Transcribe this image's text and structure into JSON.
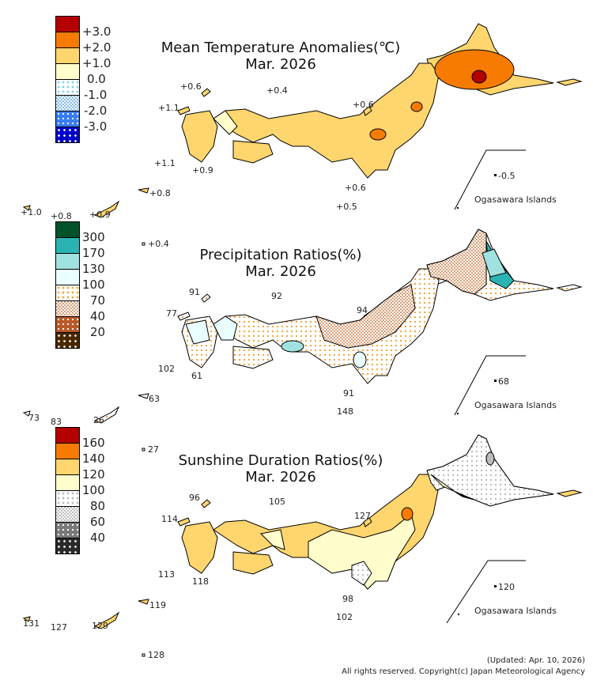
{
  "panels": [
    {
      "title": "Mean Temperature Anomalies(℃)",
      "period": "Mar. 2026",
      "legend": [
        "+3.0",
        "+2.0",
        "+1.0",
        "0.0",
        "-1.0",
        "-2.0",
        "-3.0"
      ],
      "legend_colors": [
        "#B40000",
        "#F77B00",
        "#FFD56E",
        "#FFFDCC",
        "dot:#7CD3F0",
        "chk:#86B9F5",
        "dot:#3B7DF5",
        "dot:#0000C8"
      ],
      "labels": {
        "tsushima": "+1.1",
        "oki": "+0.6",
        "sado": "+0.6",
        "dogo": "+0.4",
        "fukue": "+1.1",
        "yakushima": "+0.9",
        "amami": "+0.8",
        "yonaguni": "+1.0",
        "ishigaki": "+0.8",
        "naha": "+0.9",
        "daito": "+0.4",
        "hachijo": "+0.5",
        "miyake": "+0.6",
        "chichijima": "-0.5"
      },
      "island_label": "Ogasawara Islands"
    },
    {
      "title": "Precipitation Ratios(%)",
      "period": "Mar. 2026",
      "legend": [
        "300",
        "170",
        "130",
        "100",
        "70",
        "40",
        "20"
      ],
      "legend_colors": [
        "#04522A",
        "#2BB3B3",
        "#A0E2E0",
        "#EAFFFF",
        "dot:#F5A53C",
        "chk:#D9A07A",
        "dot:#B85A28",
        "dot:#4A2800"
      ],
      "labels": {
        "tsushima": "77",
        "oki": "91",
        "sado": "94",
        "dogo": "92",
        "fukue": "102",
        "yakushima": "61",
        "amami": "63",
        "yonaguni": "73",
        "ishigaki": "83",
        "naha": "26",
        "daito": "27",
        "hachijo": "148",
        "miyake": "91",
        "chichijima": "68"
      },
      "island_label": "Ogasawara Islands"
    },
    {
      "title": "Sunshine Duration Ratios(%)",
      "period": "Mar. 2026",
      "legend": [
        "160",
        "140",
        "120",
        "100",
        "80",
        "60",
        "40"
      ],
      "legend_colors": [
        "#B40000",
        "#F77B00",
        "#FFD56E",
        "#FFFDCC",
        "dot:#BBBBBB",
        "chk:#BDBDBD",
        "dot:#7A7A7A",
        "dot:#2A2A2A"
      ],
      "labels": {
        "tsushima": "114",
        "oki": "96",
        "sado": "127",
        "dogo": "105",
        "fukue": "113",
        "yakushima": "118",
        "amami": "119",
        "yonaguni": "131",
        "ishigaki": "127",
        "naha": "129",
        "daito": "128",
        "hachijo": "102",
        "miyake": "98",
        "chichijima": "120"
      },
      "island_label": "Ogasawara Islands"
    }
  ],
  "footer": {
    "updated": "(Updated: Apr. 10, 2026)",
    "copyright": "All rights reserved. Copyright(c) Japan Meteorological Agency"
  }
}
